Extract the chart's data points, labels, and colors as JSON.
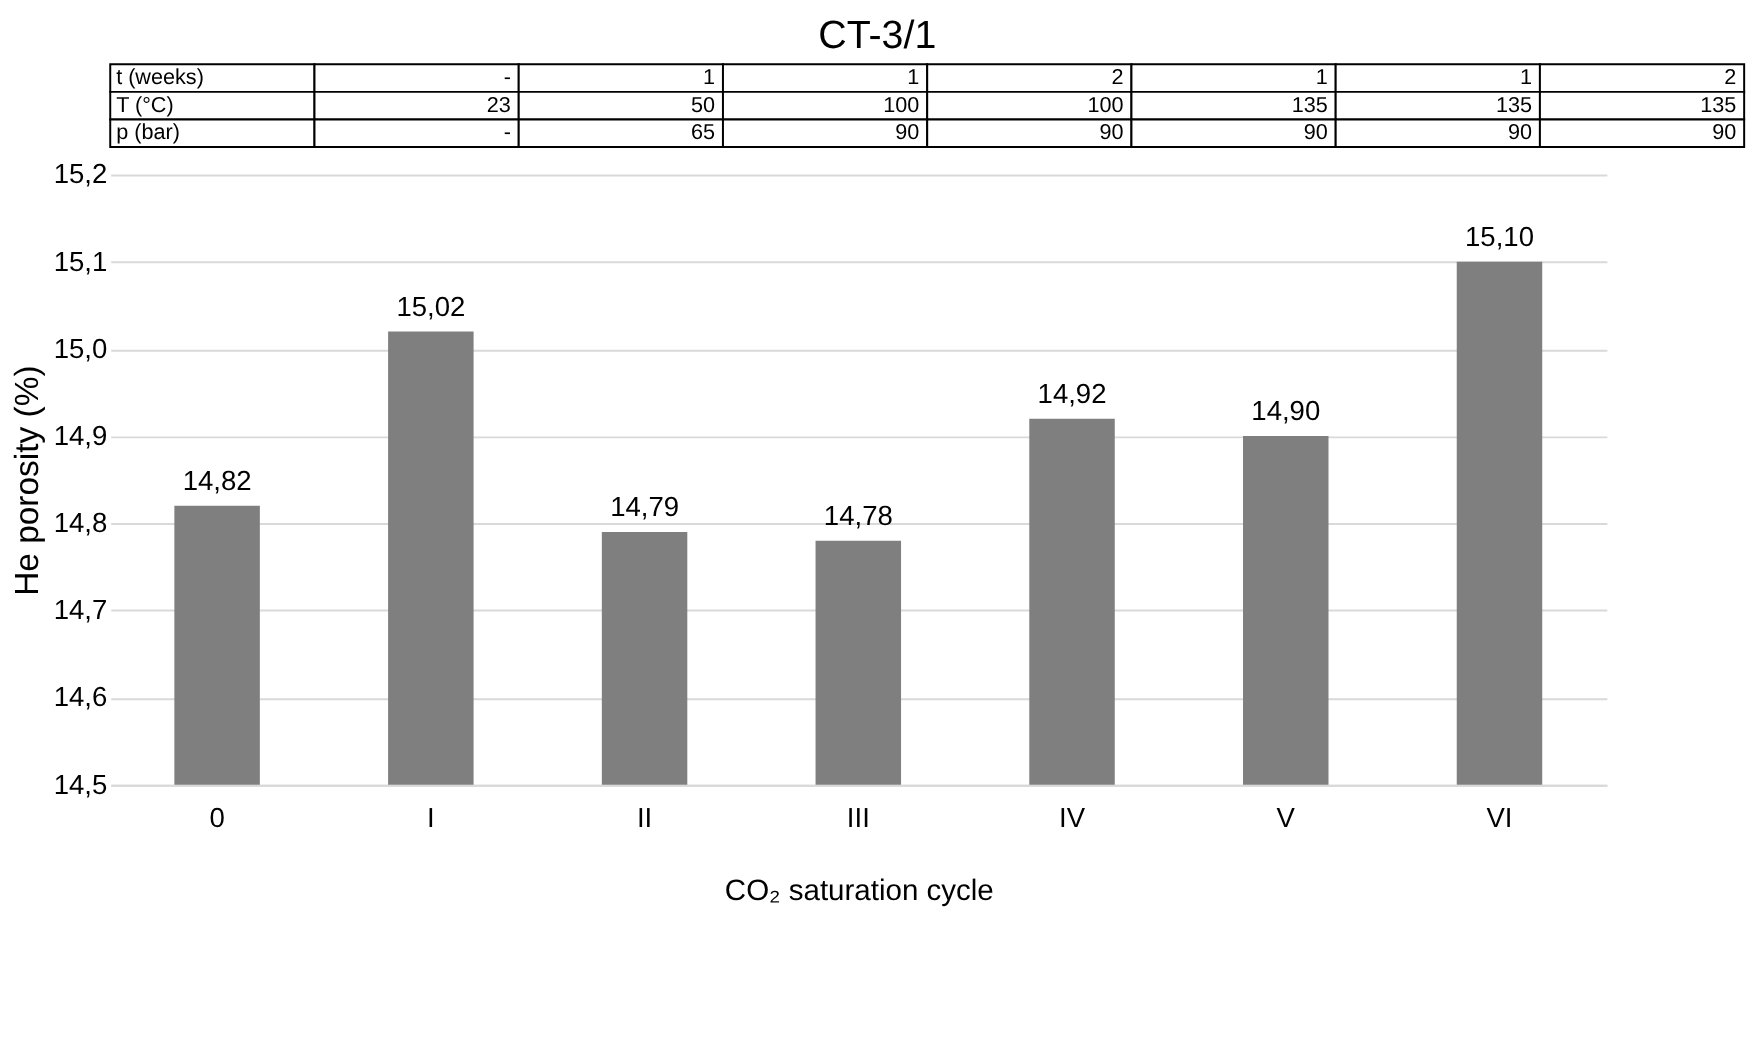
{
  "chart_data": {
    "type": "bar",
    "title": "CT-3/1",
    "xlabel": "CO₂ saturation cycle",
    "ylabel": "He porosity (%)",
    "categories": [
      "0",
      "I",
      "II",
      "III",
      "IV",
      "V",
      "VI"
    ],
    "values": [
      14.82,
      15.02,
      14.79,
      14.78,
      14.92,
      14.9,
      15.1
    ],
    "value_labels": [
      "14,82",
      "15,02",
      "14,79",
      "14,78",
      "14,92",
      "14,90",
      "15,10"
    ],
    "color": "#7f7f7f",
    "ylim": [
      14.5,
      15.2
    ],
    "yticks": [
      {
        "value": 14.5,
        "label": "14,5"
      },
      {
        "value": 14.6,
        "label": "14,6"
      },
      {
        "value": 14.7,
        "label": "14,7"
      },
      {
        "value": 14.8,
        "label": "14,8"
      },
      {
        "value": 14.9,
        "label": "14,9"
      },
      {
        "value": 15.0,
        "label": "15,0"
      },
      {
        "value": 15.1,
        "label": "15,1"
      },
      {
        "value": 15.2,
        "label": "15,2"
      }
    ],
    "grid": "y",
    "annotations": [
      "t (weeks)",
      "-",
      "1",
      "1",
      "2",
      "1",
      "1",
      "2",
      "T (°C)",
      "23",
      "50",
      "100",
      "100",
      "135",
      "135",
      "135",
      "p (bar)",
      "-",
      "65",
      "90",
      "90",
      "90",
      "90",
      "90"
    ]
  }
}
